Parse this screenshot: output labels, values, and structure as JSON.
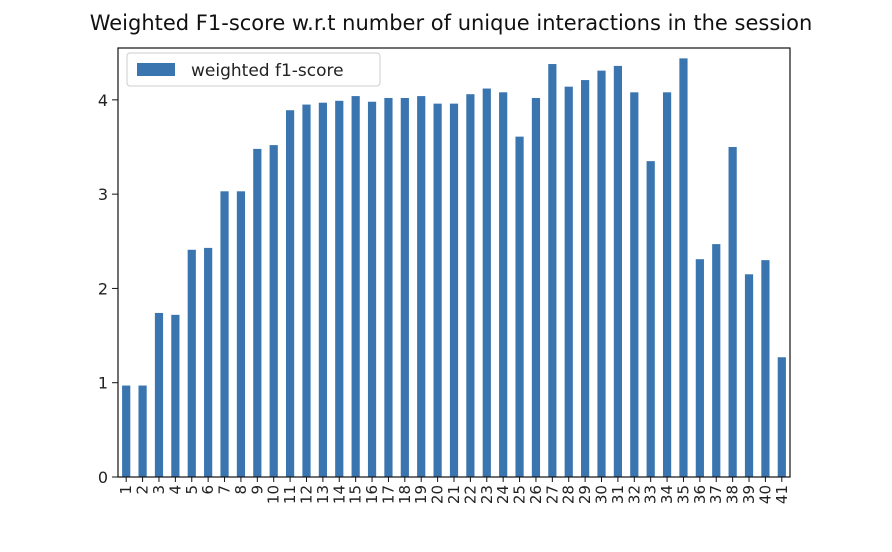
{
  "chart_data": {
    "type": "bar",
    "title": "Weighted F1-score w.r.t number of unique interactions in the session",
    "xlabel": "",
    "ylabel": "",
    "ylim": [
      0,
      4.55
    ],
    "yticks": [
      "0",
      "1",
      "2",
      "3",
      "4"
    ],
    "legend_position": "top-left",
    "grid": false,
    "bar_color": "#3a75b0",
    "categories": [
      "1",
      "2",
      "3",
      "4",
      "5",
      "6",
      "7",
      "8",
      "9",
      "10",
      "11",
      "12",
      "13",
      "14",
      "15",
      "16",
      "17",
      "18",
      "19",
      "20",
      "21",
      "22",
      "23",
      "24",
      "25",
      "26",
      "27",
      "28",
      "29",
      "30",
      "31",
      "32",
      "33",
      "34",
      "35",
      "36",
      "37",
      "38",
      "39",
      "40",
      "41"
    ],
    "series": [
      {
        "name": "weighted f1-score",
        "values": [
          0.97,
          0.97,
          1.74,
          1.72,
          2.41,
          2.43,
          3.03,
          3.03,
          3.48,
          3.52,
          3.89,
          3.95,
          3.97,
          3.99,
          4.04,
          3.98,
          4.02,
          4.02,
          4.04,
          3.96,
          3.96,
          4.06,
          4.12,
          4.08,
          3.61,
          4.02,
          4.38,
          4.14,
          4.21,
          4.31,
          4.36,
          4.08,
          3.35,
          4.08,
          4.44,
          2.31,
          2.47,
          3.5,
          2.15,
          2.3,
          1.27
        ]
      }
    ]
  }
}
